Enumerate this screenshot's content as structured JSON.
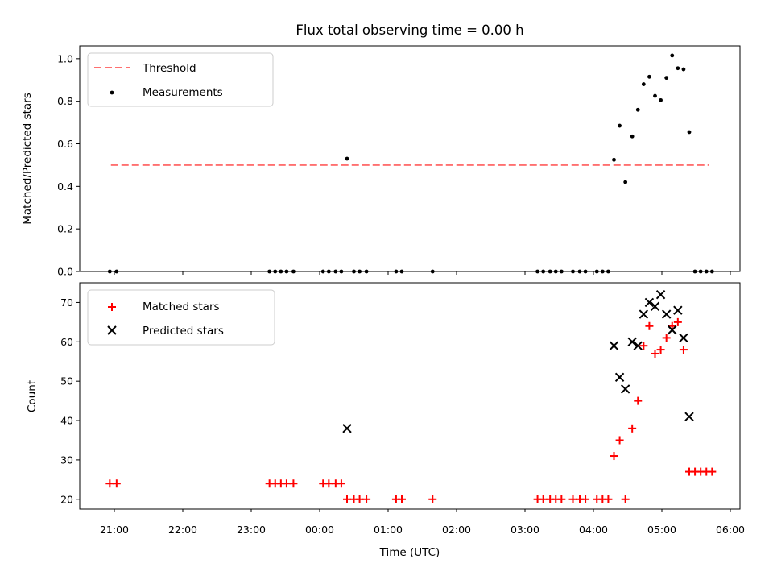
{
  "chart_data": [
    {
      "type": "scatter",
      "title": "Flux total observing time = 0.00 h",
      "xlabel": "",
      "ylabel": "Matched/Predicted stars",
      "ylim": [
        0,
        1.06
      ],
      "yticks": [
        "0.0",
        "0.2",
        "0.4",
        "0.6",
        "0.8",
        "1.0"
      ],
      "ytick_values": [
        0,
        0.2,
        0.4,
        0.6,
        0.8,
        1.0
      ],
      "legend_position": "top-left",
      "threshold": {
        "name": "Threshold",
        "value": 0.5,
        "x_start": "20:57",
        "x_end": "05:41",
        "color": "#ff7070"
      },
      "series": [
        {
          "name": "Measurements",
          "color": "#000000",
          "points": [
            [
              "20:56",
              0
            ],
            [
              "21:02",
              0
            ],
            [
              "23:16",
              0
            ],
            [
              "23:21",
              0
            ],
            [
              "23:26",
              0
            ],
            [
              "23:31",
              0
            ],
            [
              "23:37",
              0
            ],
            [
              "00:03",
              0
            ],
            [
              "00:08",
              0
            ],
            [
              "00:14",
              0
            ],
            [
              "00:19",
              0
            ],
            [
              "00:24",
              0.53
            ],
            [
              "00:30",
              0
            ],
            [
              "00:35",
              0
            ],
            [
              "00:41",
              0
            ],
            [
              "01:07",
              0
            ],
            [
              "01:12",
              0
            ],
            [
              "01:39",
              0
            ],
            [
              "03:11",
              0
            ],
            [
              "03:16",
              0
            ],
            [
              "03:22",
              0
            ],
            [
              "03:27",
              0
            ],
            [
              "03:32",
              0
            ],
            [
              "03:42",
              0
            ],
            [
              "03:48",
              0
            ],
            [
              "03:53",
              0
            ],
            [
              "04:03",
              0
            ],
            [
              "04:08",
              0
            ],
            [
              "04:13",
              0
            ],
            [
              "04:18",
              0.525
            ],
            [
              "04:23",
              0.685
            ],
            [
              "04:28",
              0.42
            ],
            [
              "04:34",
              0.635
            ],
            [
              "04:39",
              0.76
            ],
            [
              "04:44",
              0.88
            ],
            [
              "04:49",
              0.915
            ],
            [
              "04:54",
              0.825
            ],
            [
              "04:59",
              0.805
            ],
            [
              "05:04",
              0.91
            ],
            [
              "05:09",
              1.015
            ],
            [
              "05:14",
              0.955
            ],
            [
              "05:19",
              0.95
            ],
            [
              "05:24",
              0.655
            ],
            [
              "05:29",
              0
            ],
            [
              "05:34",
              0
            ],
            [
              "05:39",
              0
            ],
            [
              "05:44",
              0
            ]
          ]
        }
      ]
    },
    {
      "type": "scatter",
      "title": "",
      "xlabel": "Time (UTC)",
      "ylabel": "Count",
      "ylim": [
        17.5,
        75
      ],
      "yticks": [
        "20",
        "30",
        "40",
        "50",
        "60",
        "70"
      ],
      "ytick_values": [
        20,
        30,
        40,
        50,
        60,
        70
      ],
      "xticks": [
        "21:00",
        "22:00",
        "23:00",
        "00:00",
        "01:00",
        "02:00",
        "03:00",
        "04:00",
        "05:00",
        "06:00"
      ],
      "legend_position": "top-left",
      "series": [
        {
          "name": "Matched stars",
          "color": "#ff0000",
          "points": [
            [
              "20:56",
              24
            ],
            [
              "21:02",
              24
            ],
            [
              "23:16",
              24
            ],
            [
              "23:21",
              24
            ],
            [
              "23:26",
              24
            ],
            [
              "23:31",
              24
            ],
            [
              "23:37",
              24
            ],
            [
              "00:03",
              24
            ],
            [
              "00:08",
              24
            ],
            [
              "00:14",
              24
            ],
            [
              "00:19",
              24
            ],
            [
              "00:24",
              20
            ],
            [
              "00:30",
              20
            ],
            [
              "00:35",
              20
            ],
            [
              "00:41",
              20
            ],
            [
              "01:07",
              20
            ],
            [
              "01:12",
              20
            ],
            [
              "01:39",
              20
            ],
            [
              "03:11",
              20
            ],
            [
              "03:16",
              20
            ],
            [
              "03:22",
              20
            ],
            [
              "03:27",
              20
            ],
            [
              "03:32",
              20
            ],
            [
              "03:42",
              20
            ],
            [
              "03:48",
              20
            ],
            [
              "03:53",
              20
            ],
            [
              "04:03",
              20
            ],
            [
              "04:08",
              20
            ],
            [
              "04:13",
              20
            ],
            [
              "04:18",
              31
            ],
            [
              "04:23",
              35
            ],
            [
              "04:28",
              20
            ],
            [
              "04:34",
              38
            ],
            [
              "04:39",
              45
            ],
            [
              "04:44",
              59
            ],
            [
              "04:49",
              64
            ],
            [
              "04:54",
              57
            ],
            [
              "04:59",
              58
            ],
            [
              "05:04",
              61
            ],
            [
              "05:09",
              64
            ],
            [
              "05:14",
              65
            ],
            [
              "05:19",
              58
            ],
            [
              "05:24",
              27
            ],
            [
              "05:29",
              27
            ],
            [
              "05:34",
              27
            ],
            [
              "05:39",
              27
            ],
            [
              "05:44",
              27
            ]
          ]
        },
        {
          "name": "Predicted stars",
          "color": "#000000",
          "points": [
            [
              "00:24",
              38
            ],
            [
              "04:18",
              59
            ],
            [
              "04:23",
              51
            ],
            [
              "04:28",
              48
            ],
            [
              "04:34",
              60
            ],
            [
              "04:39",
              59
            ],
            [
              "04:44",
              67
            ],
            [
              "04:49",
              70
            ],
            [
              "04:54",
              69
            ],
            [
              "04:59",
              72
            ],
            [
              "05:04",
              67
            ],
            [
              "05:09",
              63
            ],
            [
              "05:14",
              68
            ],
            [
              "05:19",
              61
            ],
            [
              "05:24",
              41
            ]
          ]
        }
      ]
    }
  ]
}
